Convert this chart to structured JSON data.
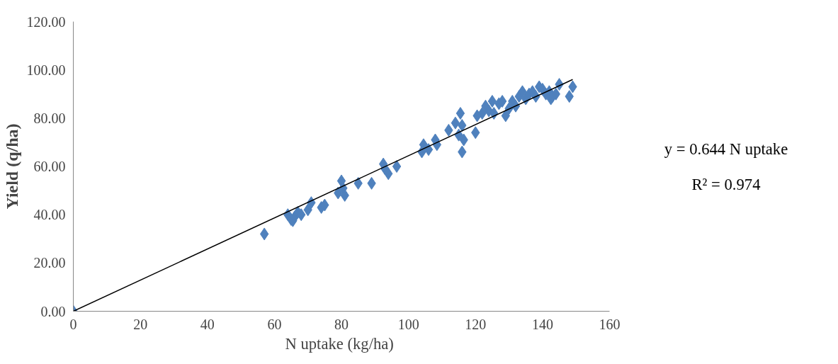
{
  "chart_data": {
    "type": "scatter",
    "xlabel": "N uptake  (kg/ha)",
    "ylabel": "Yield (q/ha)",
    "xlim": [
      0,
      160
    ],
    "xticks": [
      0,
      20,
      40,
      60,
      80,
      100,
      120,
      140,
      160
    ],
    "ylim": [
      0,
      120
    ],
    "yticks": [
      {
        "value": 0,
        "label": "0.00"
      },
      {
        "value": 20,
        "label": "20.00"
      },
      {
        "value": 40,
        "label": "40.00"
      },
      {
        "value": 60,
        "label": "60.00"
      },
      {
        "value": 80,
        "label": "80.00"
      },
      {
        "value": 100,
        "label": "100.00"
      },
      {
        "value": 120,
        "label": "120.00"
      }
    ],
    "grid": false,
    "annotations": [
      "y = 0.644 N uptake",
      "R² = 0.974"
    ],
    "series": [
      {
        "color": "#4f81bd",
        "marker": "diamond",
        "x": [
          0,
          57,
          64,
          65,
          65.5,
          66,
          67,
          68,
          70,
          71,
          74,
          75,
          79,
          80,
          80.5,
          81,
          85,
          89,
          92.5,
          93,
          94,
          96.5,
          104,
          104.5,
          106,
          108,
          108.5,
          112,
          114,
          115,
          115.5,
          116,
          116.5,
          116,
          120,
          120.5,
          122,
          123,
          124,
          125,
          125.5,
          127,
          128,
          129,
          130,
          131,
          132,
          133,
          134,
          135,
          136,
          137,
          138,
          139,
          140,
          141,
          142,
          142.5,
          143,
          144,
          145,
          148,
          149
        ],
        "values": [
          0,
          32,
          40,
          38,
          37.5,
          39,
          41,
          40,
          42,
          45,
          43,
          44,
          49,
          54,
          51,
          48,
          53,
          53,
          61,
          59,
          57,
          60,
          66,
          69,
          67,
          71,
          69,
          75,
          78,
          73,
          82,
          77,
          71,
          66,
          74,
          81,
          82,
          85,
          83,
          87,
          82,
          86,
          87,
          81,
          84,
          87,
          85,
          89,
          91,
          88,
          90,
          91,
          89,
          93,
          92,
          90,
          91,
          88,
          89,
          90,
          94,
          89,
          93
        ]
      },
      {
        "type": "line",
        "color": "#000000",
        "line_style": "solid",
        "x": [
          0,
          149
        ],
        "values": [
          0,
          96
        ]
      }
    ]
  }
}
